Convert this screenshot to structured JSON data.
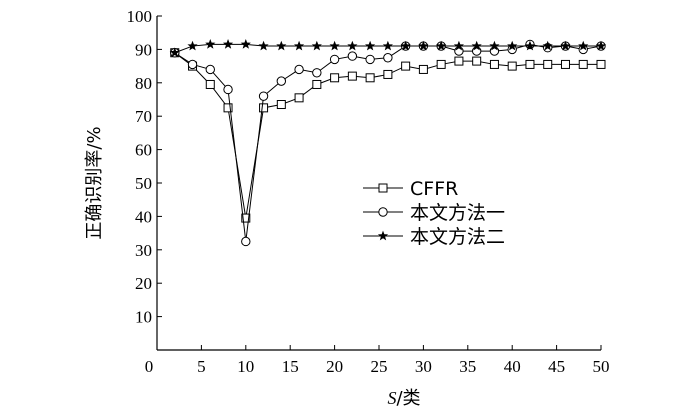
{
  "chart_data": {
    "type": "line",
    "xlabel_italic": "S",
    "xlabel_rest": "/类",
    "ylabel": "正确识别率/%",
    "xlim": [
      0,
      50
    ],
    "ylim": [
      0,
      100
    ],
    "xticks": [
      0,
      5,
      10,
      15,
      20,
      25,
      30,
      35,
      40,
      45,
      50
    ],
    "yticks": [
      10,
      20,
      30,
      40,
      50,
      60,
      70,
      80,
      90,
      100
    ],
    "grid": false,
    "legend_position": "center-right",
    "x": [
      2,
      4,
      6,
      8,
      10,
      12,
      14,
      16,
      18,
      20,
      22,
      24,
      26,
      28,
      30,
      32,
      34,
      36,
      38,
      40,
      42,
      44,
      46,
      48,
      50
    ],
    "series": [
      {
        "name": "CFFR",
        "marker": "square",
        "values": [
          89,
          85,
          79.5,
          72.5,
          39.5,
          72.5,
          73.5,
          75.5,
          79.5,
          81.5,
          82,
          81.5,
          82.5,
          85,
          84,
          85.5,
          86.5,
          86.5,
          85.5,
          85,
          85.5,
          85.5,
          85.5,
          85.5,
          85.5
        ]
      },
      {
        "name": "本文方法一",
        "marker": "circle",
        "values": [
          89,
          85.5,
          84,
          78,
          32.5,
          76,
          80.5,
          84,
          83,
          87,
          88,
          87,
          87.5,
          91,
          91,
          91,
          89.5,
          89.5,
          89.5,
          90,
          91.5,
          90.5,
          91,
          90,
          91
        ]
      },
      {
        "name": "本文方法二",
        "marker": "star",
        "values": [
          89,
          91,
          91.5,
          91.5,
          91.5,
          91,
          91,
          91,
          91,
          91,
          91,
          91,
          91,
          91,
          91,
          91,
          91,
          91,
          91,
          91,
          91,
          91,
          91,
          91,
          91
        ]
      }
    ]
  }
}
